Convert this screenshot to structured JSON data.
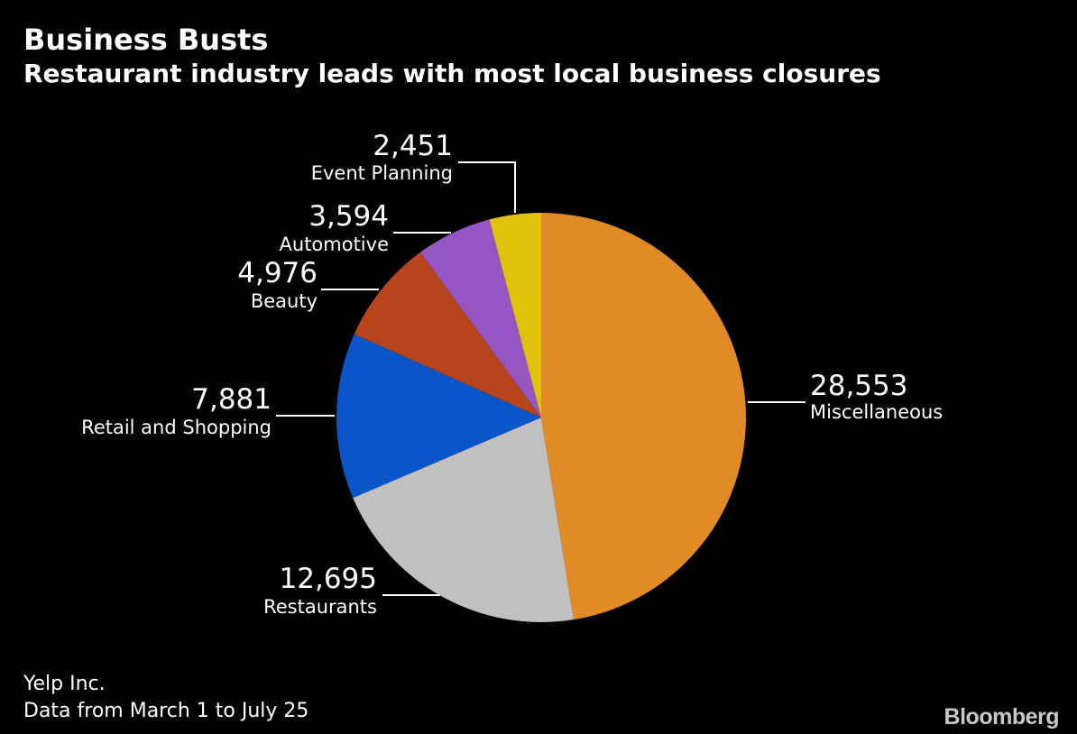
{
  "title": "Business Busts",
  "subtitle": "Restaurant industry leads with most local business closures",
  "source": "Yelp Inc.",
  "note": "Data from March 1 to July 25",
  "brand": "Bloomberg",
  "colors": {
    "background": "#000000",
    "text": "#ffffff"
  },
  "chart_data": {
    "type": "pie",
    "title": "Business Busts",
    "subtitle": "Restaurant industry leads with most local business closures",
    "start_angle_deg": 0,
    "direction": "clockwise",
    "labels_position": "outside with leader lines",
    "slices": [
      {
        "category": "Miscellaneous",
        "value": 28553,
        "value_label": "28,553",
        "color": "#e08b26"
      },
      {
        "category": "Restaurants",
        "value": 12695,
        "value_label": "12,695",
        "color": "#c0c0c0"
      },
      {
        "category": "Retail and Shopping",
        "value": 7881,
        "value_label": "7,881",
        "color": "#0a55c8"
      },
      {
        "category": "Beauty",
        "value": 4976,
        "value_label": "4,976",
        "color": "#b8441c"
      },
      {
        "category": "Automotive",
        "value": 3594,
        "value_label": "3,594",
        "color": "#9555c2"
      },
      {
        "category": "Event Planning",
        "value": 2451,
        "value_label": "2,451",
        "color": "#e1c20b"
      }
    ]
  }
}
